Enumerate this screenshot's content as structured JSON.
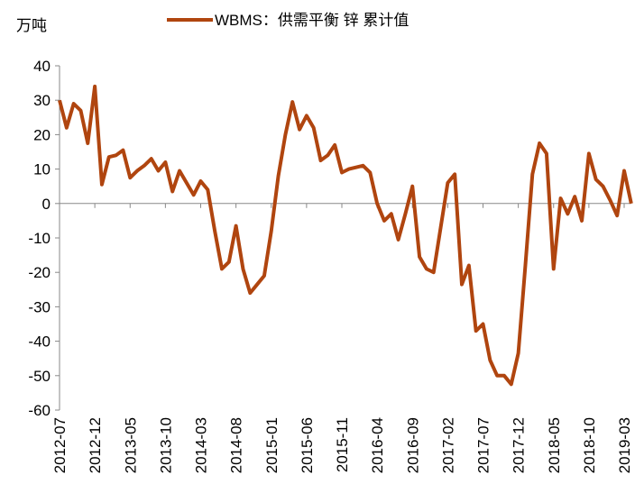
{
  "chart_data": {
    "type": "line",
    "y_unit": "万吨",
    "categories": [
      "2012-07",
      null,
      null,
      null,
      null,
      "2012-12",
      null,
      null,
      null,
      null,
      "2013-05",
      null,
      null,
      null,
      null,
      "2013-10",
      null,
      null,
      null,
      null,
      "2014-03",
      null,
      null,
      null,
      null,
      "2014-08",
      null,
      null,
      null,
      null,
      "2015-01",
      null,
      null,
      null,
      null,
      "2015-06",
      null,
      null,
      null,
      null,
      "2015-11",
      null,
      null,
      null,
      null,
      "2016-04",
      null,
      null,
      null,
      null,
      "2016-09",
      null,
      null,
      null,
      null,
      "2017-02",
      null,
      null,
      null,
      null,
      "2017-07",
      null,
      null,
      null,
      null,
      "2017-12",
      null,
      null,
      null,
      null,
      "2018-05",
      null,
      null,
      null,
      null,
      "2018-10",
      null,
      null,
      null,
      null,
      "2019-03",
      null
    ],
    "series": [
      {
        "name": "WBMS：供需平衡 锌 累计值",
        "color": "#b0450f",
        "values": [
          30,
          22,
          29,
          27,
          17.5,
          34,
          5.5,
          13.5,
          14,
          15.5,
          7.5,
          9.5,
          11,
          13,
          9.5,
          12,
          3.5,
          9.5,
          6,
          2.5,
          6.5,
          4,
          -8,
          -19,
          -17,
          -6.5,
          -19,
          -26,
          -23.5,
          -21,
          -8,
          8,
          20,
          29.5,
          21.5,
          25.5,
          22,
          12.5,
          14,
          17,
          9,
          10,
          10.5,
          11,
          9,
          0,
          -5,
          -3,
          -10.5,
          -3,
          5,
          -15.5,
          -19,
          -20,
          -7,
          6,
          8.5,
          -23.5,
          -18,
          -37,
          -35,
          -45.5,
          -50,
          -50,
          -52.5,
          -43.5,
          -18,
          8.5,
          17.5,
          14.5,
          -19,
          1.5,
          -3,
          2,
          -5,
          14.5,
          7,
          5,
          1,
          -3.5,
          9.5,
          0
        ]
      }
    ],
    "ylim": [
      -60,
      40
    ],
    "yticks": [
      -60,
      -50,
      -40,
      -30,
      -20,
      -10,
      0,
      10,
      20,
      30,
      40
    ],
    "grid": false
  }
}
